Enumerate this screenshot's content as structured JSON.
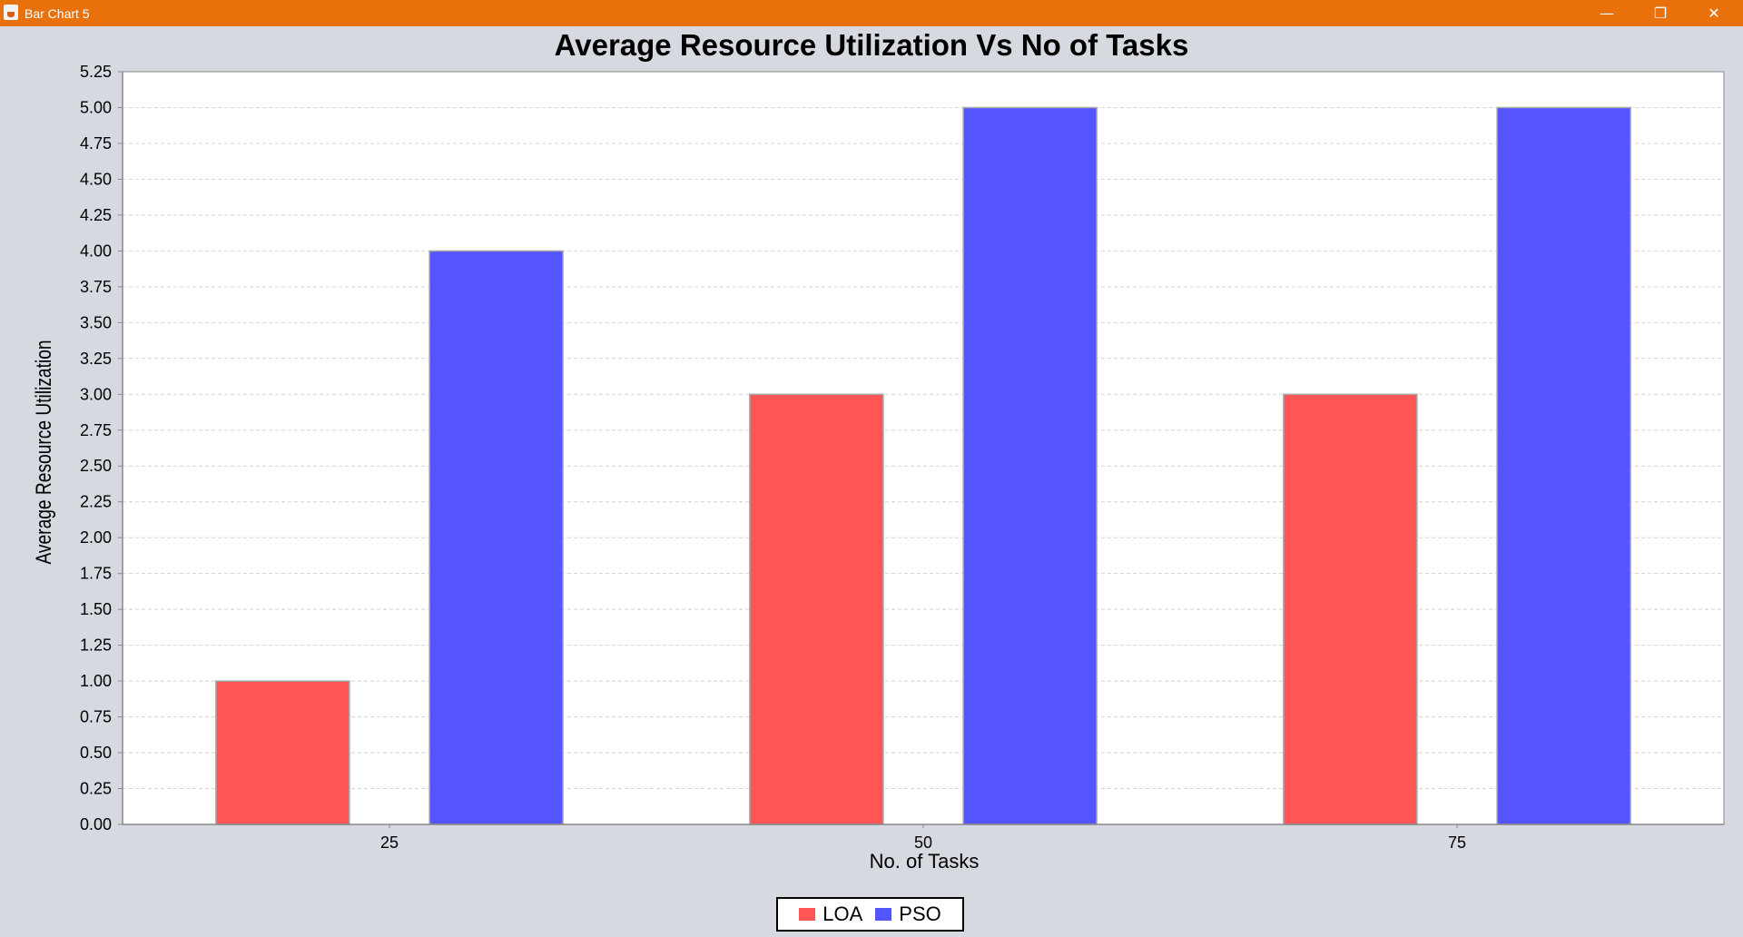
{
  "window": {
    "title": "Bar Chart 5"
  },
  "window_controls": {
    "minimize": "—",
    "restore": "❐",
    "close": "✕"
  },
  "colors": {
    "titlebar": "#e8710c",
    "loa": "#ff5555",
    "pso": "#5555ff",
    "background": "#d6d9e0",
    "plot_background": "#ffffff"
  },
  "chart_data": {
    "type": "bar",
    "title": "Average Resource Utilization Vs No of Tasks",
    "xlabel": "No. of Tasks",
    "ylabel": "Average Resource Utilization",
    "categories": [
      "25",
      "50",
      "75"
    ],
    "series": [
      {
        "name": "LOA",
        "values": [
          1.0,
          3.0,
          3.0
        ],
        "color": "#ff5555"
      },
      {
        "name": "PSO",
        "values": [
          4.0,
          5.0,
          5.0
        ],
        "color": "#5555ff"
      }
    ],
    "ylim": [
      0,
      5.25
    ],
    "ytick_step": 0.25,
    "grid": true,
    "legend_position": "bottom"
  }
}
